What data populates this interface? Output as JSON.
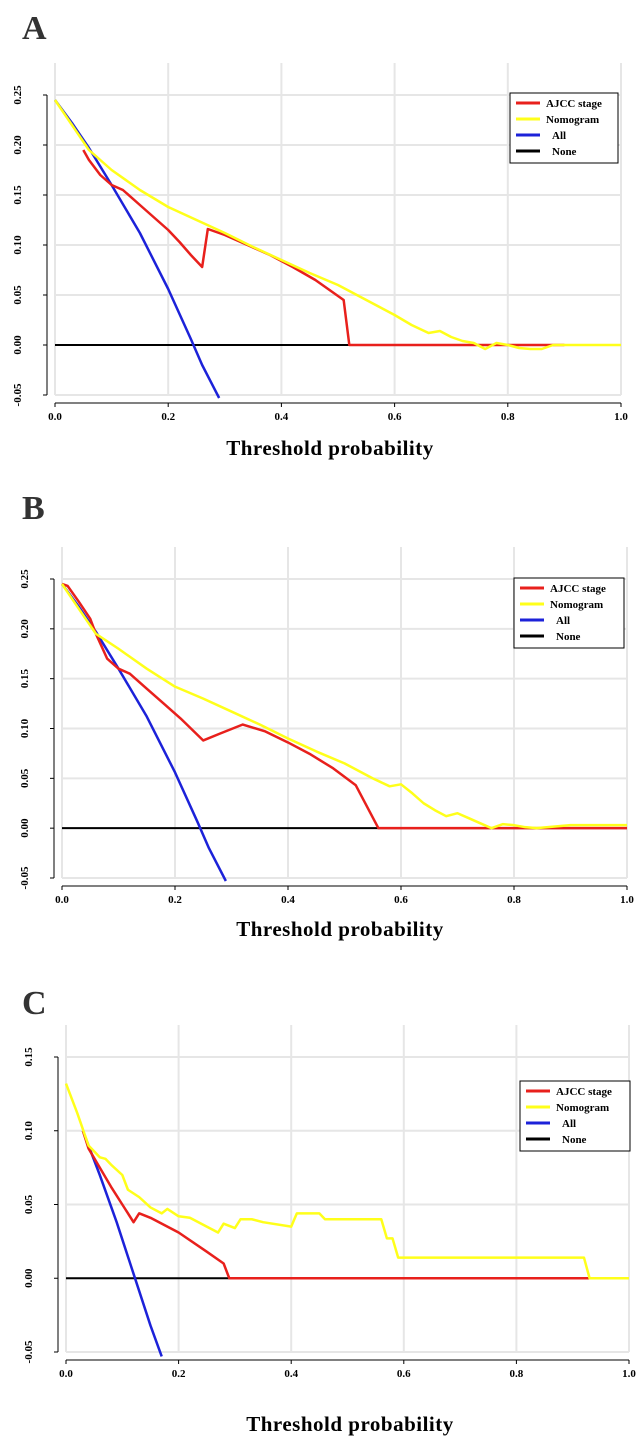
{
  "panels": [
    {
      "letter": "A",
      "xlabel": "Threshold probability",
      "chart_data": {
        "type": "line",
        "xlabel": "Threshold probability",
        "ylabel": "",
        "xlim": [
          0,
          1
        ],
        "ylim": [
          -0.05,
          0.25
        ],
        "xticks": [
          "0.0",
          "0.2",
          "0.4",
          "0.6",
          "0.8",
          "1.0"
        ],
        "yticks": [
          "-0.05",
          "0.00",
          "0.05",
          "0.10",
          "0.15",
          "0.20",
          "0.25"
        ],
        "grid": true,
        "legend": "top-right",
        "series": [
          {
            "name": "AJCC stage",
            "color": "#e8201c",
            "x": [
              0.05,
              0.06,
              0.08,
              0.1,
              0.12,
              0.15,
              0.18,
              0.2,
              0.22,
              0.24,
              0.26,
              0.27,
              0.3,
              0.34,
              0.38,
              0.42,
              0.46,
              0.51,
              0.52,
              0.55,
              0.65,
              0.75,
              0.85,
              0.9
            ],
            "y": [
              0.195,
              0.185,
              0.17,
              0.16,
              0.155,
              0.14,
              0.125,
              0.115,
              0.103,
              0.09,
              0.078,
              0.116,
              0.11,
              0.1,
              0.09,
              0.078,
              0.065,
              0.045,
              0.0,
              0.0,
              0.0,
              0.0,
              0.0,
              0.0
            ]
          },
          {
            "name": "Nomogram",
            "color": "#ffff1a",
            "x": [
              0.0,
              0.03,
              0.06,
              0.1,
              0.15,
              0.2,
              0.25,
              0.3,
              0.35,
              0.4,
              0.45,
              0.5,
              0.55,
              0.6,
              0.63,
              0.66,
              0.68,
              0.7,
              0.72,
              0.74,
              0.76,
              0.78,
              0.8,
              0.82,
              0.84,
              0.86,
              0.88,
              0.9,
              1.0
            ],
            "y": [
              0.245,
              0.22,
              0.195,
              0.175,
              0.155,
              0.138,
              0.125,
              0.112,
              0.098,
              0.085,
              0.072,
              0.06,
              0.045,
              0.03,
              0.02,
              0.012,
              0.014,
              0.008,
              0.004,
              0.002,
              -0.004,
              0.002,
              0.0,
              -0.003,
              -0.004,
              -0.004,
              0.0,
              0.0,
              0.0
            ]
          },
          {
            "name": "All",
            "color": "#1c22d9",
            "x": [
              0.0,
              0.03,
              0.06,
              0.1,
              0.15,
              0.2,
              0.24,
              0.26,
              0.29
            ],
            "y": [
              0.245,
              0.222,
              0.197,
              0.16,
              0.112,
              0.056,
              0.006,
              -0.02,
              -0.053
            ]
          },
          {
            "name": "None",
            "color": "#000000",
            "x": [
              0.0,
              0.9
            ],
            "y": [
              0.0,
              0.0
            ]
          }
        ]
      }
    },
    {
      "letter": "B",
      "xlabel": "Threshold probability",
      "chart_data": {
        "type": "line",
        "xlabel": "Threshold probability",
        "ylabel": "",
        "xlim": [
          0,
          1
        ],
        "ylim": [
          -0.05,
          0.25
        ],
        "xticks": [
          "0.0",
          "0.2",
          "0.4",
          "0.6",
          "0.8",
          "1.0"
        ],
        "yticks": [
          "-0.05",
          "0.00",
          "0.05",
          "0.10",
          "0.15",
          "0.20",
          "0.25"
        ],
        "grid": true,
        "legend": "top-right",
        "series": [
          {
            "name": "AJCC stage",
            "color": "#e8201c",
            "x": [
              0.0,
              0.01,
              0.03,
              0.05,
              0.06,
              0.08,
              0.1,
              0.12,
              0.15,
              0.18,
              0.21,
              0.25,
              0.28,
              0.32,
              0.36,
              0.4,
              0.44,
              0.48,
              0.52,
              0.56,
              0.6,
              0.7,
              0.8,
              0.9,
              1.0
            ],
            "y": [
              0.245,
              0.243,
              0.227,
              0.21,
              0.195,
              0.17,
              0.16,
              0.155,
              0.14,
              0.125,
              0.11,
              0.088,
              0.095,
              0.104,
              0.097,
              0.086,
              0.074,
              0.06,
              0.043,
              0.0,
              0.0,
              0.0,
              0.0,
              0.0,
              0.0
            ]
          },
          {
            "name": "Nomogram",
            "color": "#ffff1a",
            "x": [
              0.0,
              0.03,
              0.06,
              0.1,
              0.15,
              0.2,
              0.25,
              0.3,
              0.35,
              0.4,
              0.45,
              0.5,
              0.55,
              0.58,
              0.6,
              0.62,
              0.64,
              0.66,
              0.68,
              0.7,
              0.72,
              0.74,
              0.76,
              0.78,
              0.8,
              0.82,
              0.84,
              0.86,
              0.88,
              0.9,
              0.95,
              1.0
            ],
            "y": [
              0.245,
              0.22,
              0.195,
              0.18,
              0.16,
              0.142,
              0.13,
              0.117,
              0.104,
              0.09,
              0.077,
              0.065,
              0.05,
              0.042,
              0.044,
              0.035,
              0.025,
              0.018,
              0.012,
              0.015,
              0.01,
              0.005,
              0.0,
              0.004,
              0.003,
              0.001,
              0.0,
              0.001,
              0.002,
              0.003,
              0.003,
              0.003
            ]
          },
          {
            "name": "All",
            "color": "#1c22d9",
            "x": [
              0.0,
              0.03,
              0.06,
              0.1,
              0.15,
              0.2,
              0.24,
              0.26,
              0.29
            ],
            "y": [
              0.245,
              0.222,
              0.197,
              0.16,
              0.112,
              0.056,
              0.006,
              -0.02,
              -0.053
            ]
          },
          {
            "name": "None",
            "color": "#000000",
            "x": [
              0.0,
              1.0
            ],
            "y": [
              0.0,
              0.0
            ]
          }
        ]
      }
    },
    {
      "letter": "C",
      "xlabel": "Threshold probability",
      "chart_data": {
        "type": "line",
        "xlabel": "Threshold probability",
        "ylabel": "",
        "xlim": [
          0,
          1
        ],
        "ylim": [
          -0.05,
          0.15
        ],
        "xticks": [
          "0.0",
          "0.2",
          "0.4",
          "0.6",
          "0.8",
          "1.0"
        ],
        "yticks": [
          "-0.05",
          "0.00",
          "0.05",
          "0.10",
          "0.15"
        ],
        "grid": true,
        "legend": "top-right",
        "series": [
          {
            "name": "AJCC stage",
            "color": "#e8201c",
            "x": [
              0.03,
              0.04,
              0.06,
              0.08,
              0.1,
              0.12,
              0.13,
              0.15,
              0.2,
              0.25,
              0.28,
              0.29,
              0.35,
              0.5,
              0.7,
              0.9,
              0.93
            ],
            "y": [
              0.1,
              0.088,
              0.075,
              0.062,
              0.05,
              0.038,
              0.044,
              0.041,
              0.031,
              0.018,
              0.01,
              0.0,
              0.0,
              0.0,
              0.0,
              0.0,
              0.0
            ]
          },
          {
            "name": "Nomogram",
            "color": "#ffff1a",
            "x": [
              0.0,
              0.02,
              0.04,
              0.06,
              0.07,
              0.08,
              0.1,
              0.11,
              0.13,
              0.15,
              0.17,
              0.18,
              0.2,
              0.22,
              0.25,
              0.27,
              0.28,
              0.3,
              0.31,
              0.33,
              0.35,
              0.4,
              0.41,
              0.45,
              0.46,
              0.5,
              0.56,
              0.57,
              0.58,
              0.59,
              0.6,
              0.7,
              0.8,
              0.92,
              0.93,
              1.0
            ],
            "y": [
              0.132,
              0.112,
              0.09,
              0.082,
              0.081,
              0.077,
              0.07,
              0.06,
              0.055,
              0.048,
              0.044,
              0.047,
              0.042,
              0.041,
              0.035,
              0.031,
              0.037,
              0.034,
              0.04,
              0.04,
              0.038,
              0.035,
              0.044,
              0.044,
              0.04,
              0.04,
              0.04,
              0.027,
              0.027,
              0.014,
              0.014,
              0.014,
              0.014,
              0.014,
              0.0,
              0.0
            ]
          },
          {
            "name": "All",
            "color": "#1c22d9",
            "x": [
              0.03,
              0.06,
              0.09,
              0.12,
              0.15,
              0.17
            ],
            "y": [
              0.1,
              0.07,
              0.038,
              0.003,
              -0.032,
              -0.053
            ]
          },
          {
            "name": "None",
            "color": "#000000",
            "x": [
              0.0,
              0.93
            ],
            "y": [
              0.0,
              0.0
            ]
          }
        ]
      }
    }
  ]
}
